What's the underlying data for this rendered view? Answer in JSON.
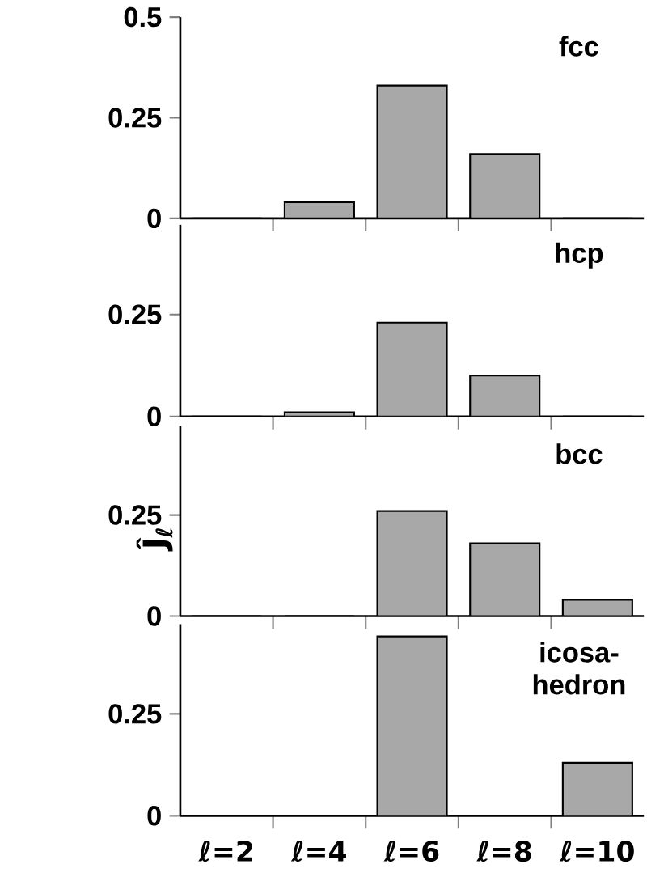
{
  "chart_data": [
    {
      "type": "bar",
      "title": "fcc",
      "categories": [
        null,
        null,
        null,
        null,
        null
      ],
      "values": [
        0,
        0.04,
        0.33,
        0.16,
        0
      ],
      "color": "#a8a8a8",
      "ylim": [
        0,
        0.5
      ],
      "yticks": [
        0,
        0.25,
        0.5
      ],
      "tick_labels": "y"
    },
    {
      "type": "bar",
      "title": "hcp",
      "ylabel": "Ĵ$_{ℓ}$",
      "categories": [
        null,
        null,
        null,
        null,
        null
      ],
      "values": [
        0,
        0.01,
        0.23,
        0.1,
        0
      ],
      "color": "#a8a8a8",
      "ylim": [
        0,
        0.47
      ],
      "yticks": [
        0,
        0.25
      ],
      "tick_labels": "y"
    },
    {
      "type": "bar",
      "title": "bcc",
      "categories": [
        null,
        null,
        null,
        null,
        null
      ],
      "values": [
        0,
        0,
        0.26,
        0.18,
        0.04
      ],
      "color": "#a8a8a8",
      "ylim": [
        0,
        0.47
      ],
      "yticks": [
        0,
        0.25
      ],
      "tick_labels": "y"
    },
    {
      "type": "bar",
      "title": "icosa-hedron",
      "categories": [
        "ℓ=2",
        "ℓ=4",
        "ℓ=6",
        "ℓ=8",
        "ℓ=10"
      ],
      "values": [
        0,
        0,
        0.44,
        0,
        0.13
      ],
      "color": "#a8a8a8",
      "ylim": [
        0,
        0.47
      ],
      "yticks": [
        0,
        0.25
      ]
    }
  ]
}
